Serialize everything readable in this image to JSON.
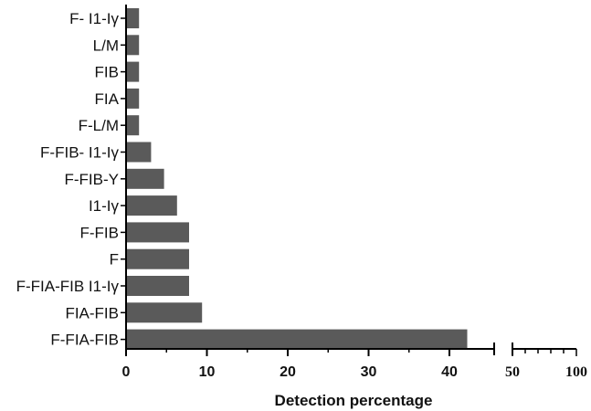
{
  "chart_data": {
    "type": "bar",
    "orientation": "horizontal",
    "categories": [
      "F- I1-Iγ",
      "L/M",
      "FIB",
      "FIA",
      "F-L/M",
      "F-FIB- I1-Iγ",
      "F-FIB-Y",
      "I1-Iγ",
      "F-FIB",
      "F",
      "F-FIA-FIB I1-Iγ",
      "FIA-FIB",
      "F-FIA-FIB"
    ],
    "values": [
      1.6,
      1.6,
      1.6,
      1.6,
      1.6,
      3.1,
      4.7,
      6.3,
      7.8,
      7.8,
      7.8,
      9.4,
      42.2
    ],
    "title": "",
    "xlabel": "Detection percentage",
    "ylabel": "",
    "axis_break": {
      "segment1": {
        "range": [
          0,
          45
        ],
        "ticks": [
          "0",
          "10",
          "20",
          "30",
          "40"
        ]
      },
      "segment2": {
        "range": [
          50,
          100
        ],
        "ticks": [
          "50",
          "100"
        ]
      }
    },
    "bar_color": "#5a5a5a",
    "grid": false,
    "legend": "none"
  }
}
